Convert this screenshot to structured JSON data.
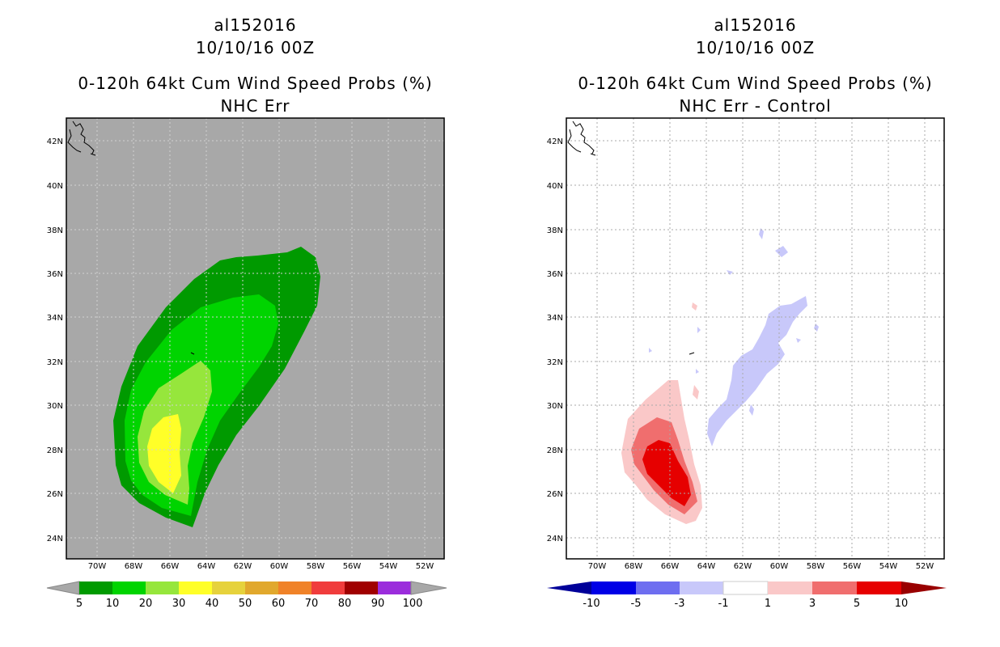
{
  "left_panel": {
    "storm_id": "al152016",
    "datetime": "10/10/16 00Z",
    "product": "0-120h 64kt Cum Wind Speed Probs (%)",
    "subtitle": "NHC Err",
    "background": "#a8a8a8",
    "colorbar": {
      "labels": [
        "5",
        "10",
        "20",
        "30",
        "40",
        "50",
        "60",
        "70",
        "80",
        "90",
        "100"
      ],
      "colors": [
        "#009a00",
        "#00d400",
        "#96e63c",
        "#ffff28",
        "#e6d23c",
        "#e1a82d",
        "#f08228",
        "#f03c3c",
        "#a00000",
        "#820000",
        "#9b2ddc"
      ]
    }
  },
  "right_panel": {
    "storm_id": "al152016",
    "datetime": "10/10/16 00Z",
    "product": "0-120h 64kt Cum Wind Speed Probs (%)",
    "subtitle": "NHC Err - Control",
    "colorbar": {
      "labels": [
        "-10",
        "-5",
        "-3",
        "-1",
        "1",
        "3",
        "5",
        "10"
      ],
      "colors": [
        "#000099",
        "#0000e6",
        "#6e6ef0",
        "#c8c8fa",
        "#ffffff",
        "#fac8c8",
        "#f06e6e",
        "#e60000",
        "#990000"
      ]
    }
  },
  "axes": {
    "lon_labels": [
      "70W",
      "68W",
      "66W",
      "64W",
      "62W",
      "60W",
      "58W",
      "56W",
      "54W",
      "52W"
    ],
    "lat_labels": [
      "42N",
      "40N",
      "38N",
      "36N",
      "34N",
      "32N",
      "30N",
      "28N",
      "26N",
      "24N"
    ]
  },
  "colors": {
    "green_dark": "#009a00",
    "green": "#00d400",
    "green_light": "#96e63c",
    "yellow": "#ffff28",
    "red_light": "#fac8c8",
    "red_mid": "#f06e6e",
    "red": "#e60000",
    "blue_light": "#c8c8fa"
  }
}
